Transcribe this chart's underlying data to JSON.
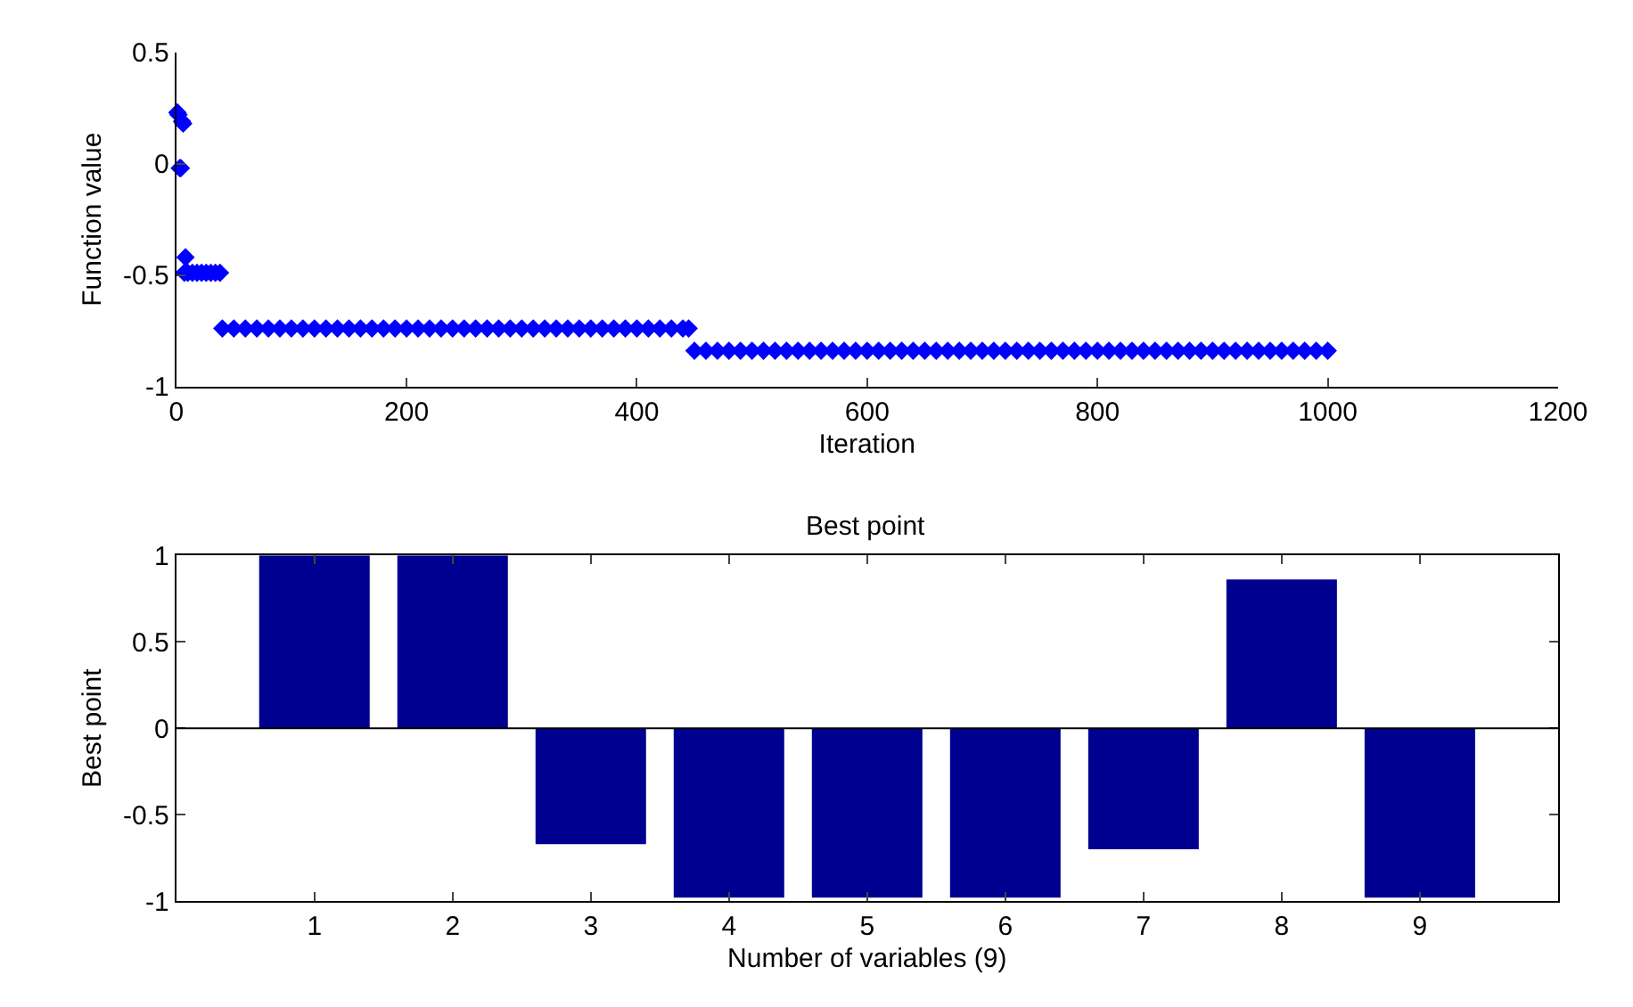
{
  "chart_data": [
    {
      "type": "scatter",
      "xlabel": "Iteration",
      "ylabel": "Function value",
      "marker": "diamond",
      "grid": false,
      "xlim": [
        0,
        1200
      ],
      "xticks": [
        0,
        200,
        400,
        600,
        800,
        1000,
        1200
      ],
      "ylim": [
        -1,
        0.5
      ],
      "yticks": [
        -1,
        -0.5,
        0,
        0.5
      ],
      "series": [
        {
          "color": "#0000ff",
          "x": [
            1,
            2,
            3,
            4,
            5,
            6,
            7,
            8,
            10,
            14,
            18,
            22,
            26,
            30,
            34,
            38,
            40,
            50,
            60,
            70,
            80,
            90,
            100,
            110,
            120,
            130,
            140,
            150,
            160,
            170,
            180,
            190,
            200,
            210,
            220,
            230,
            240,
            250,
            260,
            270,
            280,
            290,
            300,
            310,
            320,
            330,
            340,
            350,
            360,
            370,
            380,
            390,
            400,
            410,
            420,
            430,
            440,
            445,
            450,
            460,
            470,
            480,
            490,
            500,
            510,
            520,
            530,
            540,
            550,
            560,
            570,
            580,
            590,
            600,
            610,
            620,
            630,
            640,
            650,
            660,
            670,
            680,
            690,
            700,
            710,
            720,
            730,
            740,
            750,
            760,
            770,
            780,
            790,
            800,
            810,
            820,
            830,
            840,
            850,
            860,
            870,
            880,
            890,
            900,
            910,
            920,
            930,
            940,
            950,
            960,
            970,
            980,
            990,
            1000
          ],
          "values": [
            0.23,
            0.22,
            -0.02,
            -0.02,
            0.19,
            0.18,
            -0.49,
            -0.42,
            -0.49,
            -0.49,
            -0.49,
            -0.49,
            -0.49,
            -0.49,
            -0.49,
            -0.49,
            -0.74,
            -0.74,
            -0.74,
            -0.74,
            -0.74,
            -0.74,
            -0.74,
            -0.74,
            -0.74,
            -0.74,
            -0.74,
            -0.74,
            -0.74,
            -0.74,
            -0.74,
            -0.74,
            -0.74,
            -0.74,
            -0.74,
            -0.74,
            -0.74,
            -0.74,
            -0.74,
            -0.74,
            -0.74,
            -0.74,
            -0.74,
            -0.74,
            -0.74,
            -0.74,
            -0.74,
            -0.74,
            -0.74,
            -0.74,
            -0.74,
            -0.74,
            -0.74,
            -0.74,
            -0.74,
            -0.74,
            -0.74,
            -0.74,
            -0.84,
            -0.84,
            -0.84,
            -0.84,
            -0.84,
            -0.84,
            -0.84,
            -0.84,
            -0.84,
            -0.84,
            -0.84,
            -0.84,
            -0.84,
            -0.84,
            -0.84,
            -0.84,
            -0.84,
            -0.84,
            -0.84,
            -0.84,
            -0.84,
            -0.84,
            -0.84,
            -0.84,
            -0.84,
            -0.84,
            -0.84,
            -0.84,
            -0.84,
            -0.84,
            -0.84,
            -0.84,
            -0.84,
            -0.84,
            -0.84,
            -0.84,
            -0.84,
            -0.84,
            -0.84,
            -0.84,
            -0.84,
            -0.84,
            -0.84,
            -0.84,
            -0.84,
            -0.84,
            -0.84,
            -0.84,
            -0.84,
            -0.84,
            -0.84,
            -0.84,
            -0.84,
            -0.84,
            -0.84,
            -0.84
          ]
        }
      ]
    },
    {
      "type": "bar",
      "title": "Best point",
      "xlabel": "Number of variables (9)",
      "ylabel": "Best point",
      "grid": false,
      "categories": [
        "1",
        "2",
        "3",
        "4",
        "5",
        "6",
        "7",
        "8",
        "9"
      ],
      "ref_lines": [
        {
          "axis": "y",
          "value": 0,
          "color": "#000000"
        }
      ],
      "ylim": [
        -1,
        1
      ],
      "yticks": [
        -1,
        -0.5,
        0,
        0.5,
        1
      ],
      "series": [
        {
          "color": "#000090",
          "values": [
            1,
            1,
            -0.67,
            -0.98,
            -0.98,
            -0.98,
            -0.7,
            0.86,
            -0.98
          ]
        }
      ]
    }
  ]
}
